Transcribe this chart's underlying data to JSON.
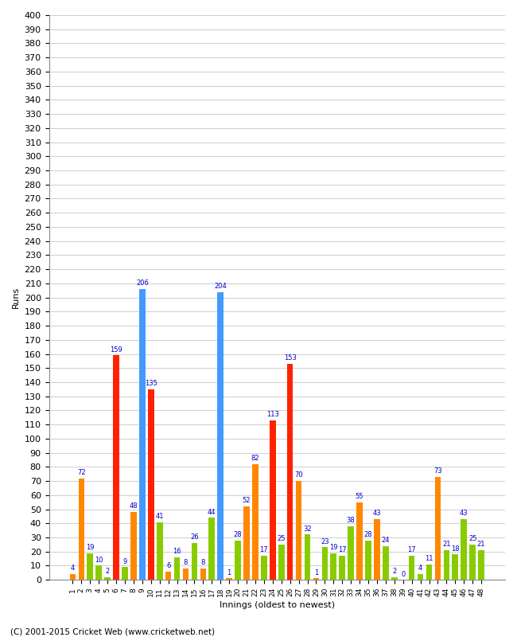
{
  "title": "",
  "xlabel": "Innings (oldest to newest)",
  "ylabel": "Runs",
  "footer": "(C) 2001-2015 Cricket Web (www.cricketweb.net)",
  "ylim": [
    0,
    400
  ],
  "yticks": [
    0,
    10,
    20,
    30,
    40,
    50,
    60,
    70,
    80,
    90,
    100,
    110,
    120,
    130,
    140,
    150,
    160,
    170,
    180,
    190,
    200,
    210,
    220,
    230,
    240,
    250,
    260,
    270,
    280,
    290,
    300,
    310,
    320,
    330,
    340,
    350,
    360,
    370,
    380,
    390,
    400
  ],
  "innings": [
    1,
    2,
    3,
    4,
    5,
    6,
    7,
    8,
    9,
    10,
    11,
    12,
    13,
    14,
    15,
    16,
    17,
    18,
    19,
    20,
    21,
    22,
    23,
    24,
    25,
    26,
    27,
    28,
    29,
    30,
    31,
    32,
    33,
    34,
    35,
    36,
    37,
    38,
    39,
    40,
    41,
    42,
    43,
    44,
    45,
    46,
    47,
    48
  ],
  "values": [
    4,
    72,
    19,
    10,
    2,
    159,
    9,
    48,
    206,
    135,
    41,
    6,
    16,
    8,
    26,
    8,
    44,
    204,
    1,
    28,
    52,
    82,
    17,
    113,
    25,
    153,
    70,
    32,
    1,
    23,
    19,
    17,
    38,
    55,
    28,
    43,
    24,
    2,
    0,
    17,
    4,
    11,
    73,
    21,
    18,
    43,
    25,
    21
  ],
  "bar_colors": [
    "#ff8800",
    "#ff8800",
    "#88cc00",
    "#88cc00",
    "#88cc00",
    "#ff2200",
    "#88cc00",
    "#ff8800",
    "#4499ff",
    "#ff2200",
    "#88cc00",
    "#ff8800",
    "#88cc00",
    "#ff8800",
    "#88cc00",
    "#ff8800",
    "#88cc00",
    "#4499ff",
    "#ff8800",
    "#88cc00",
    "#ff8800",
    "#ff8800",
    "#88cc00",
    "#ff2200",
    "#88cc00",
    "#ff2200",
    "#ff8800",
    "#88cc00",
    "#ff8800",
    "#88cc00",
    "#88cc00",
    "#88cc00",
    "#88cc00",
    "#ff8800",
    "#88cc00",
    "#ff8800",
    "#88cc00",
    "#88cc00",
    "#88cc00",
    "#88cc00",
    "#88cc00",
    "#88cc00",
    "#ff8800",
    "#88cc00",
    "#88cc00",
    "#88cc00",
    "#88cc00",
    "#88cc00"
  ],
  "bar_width": 0.7,
  "background_color": "#ffffff",
  "grid_color": "#bbbbbb",
  "label_color": "#0000cc",
  "label_fontsize": 6.0,
  "axis_fontsize": 8,
  "xtick_fontsize": 6.5,
  "footer_fontsize": 7.5
}
